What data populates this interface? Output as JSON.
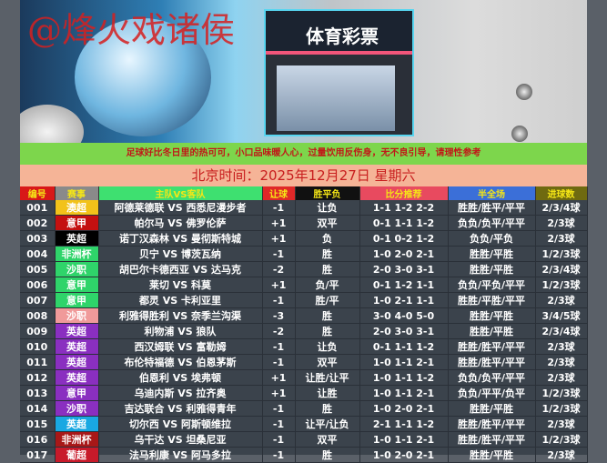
{
  "banner": {
    "watermark": "@烽火戏诸侯",
    "store_sign": "体育彩票"
  },
  "slogan": "足球好比冬日里的热可可，小口品味暖人心，过量饮用反伤身，无不良引导，请理性参考",
  "date_line": "北京时间：2025年12月27日  星期六",
  "headers": [
    {
      "label": "编号",
      "bg": "#d81818"
    },
    {
      "label": "赛事",
      "bg": "#8a8a8a"
    },
    {
      "label": "主队VS客队",
      "bg": "#3ee070"
    },
    {
      "label": "让球",
      "bg": "#e02828"
    },
    {
      "label": "胜平负",
      "bg": "#111111"
    },
    {
      "label": "比分推荐",
      "bg": "#e84a5f"
    },
    {
      "label": "半全场",
      "bg": "#3b6fd8"
    },
    {
      "label": "进球数",
      "bg": "#6f6a10"
    }
  ],
  "rows": [
    {
      "no": "001",
      "league": "澳超",
      "league_color": "#f2c21a",
      "match": "阿德莱德联 VS 西悉尼漫步者",
      "handicap": "-1",
      "result": "让负",
      "scores": "1-1 1-2 2-2",
      "half_full": "胜胜/胜平/平平",
      "goals": "2/3/4球"
    },
    {
      "no": "002",
      "league": "意甲",
      "league_color": "#c41010",
      "match": "帕尔马 VS 佛罗伦萨",
      "handicap": "+1",
      "result": "双平",
      "scores": "0-1 1-1 1-2",
      "half_full": "负负/负平/平平",
      "goals": "2/3球"
    },
    {
      "no": "003",
      "league": "英超",
      "league_color": "#000000",
      "match": "诺丁汉森林 VS 曼彻斯特城",
      "handicap": "+1",
      "result": "负",
      "scores": "0-1 0-2 1-2",
      "half_full": "负负/平负",
      "goals": "2/3球"
    },
    {
      "no": "004",
      "league": "非洲杯",
      "league_color": "#2fd46a",
      "match": "贝宁 VS 博茨瓦纳",
      "handicap": "-1",
      "result": "胜",
      "scores": "1-0 2-0 2-1",
      "half_full": "胜胜/平胜",
      "goals": "1/2/3球"
    },
    {
      "no": "005",
      "league": "沙职",
      "league_color": "#2fd46a",
      "match": "胡巴尔卡德西亚 VS 达马克",
      "handicap": "-2",
      "result": "胜",
      "scores": "2-0 3-0 3-1",
      "half_full": "胜胜/平胜",
      "goals": "2/3/4球"
    },
    {
      "no": "006",
      "league": "意甲",
      "league_color": "#2fd46a",
      "match": "莱切 VS 科莫",
      "handicap": "+1",
      "result": "负/平",
      "scores": "0-1 1-2 1-1",
      "half_full": "负负/平负/平平",
      "goals": "1/2/3球"
    },
    {
      "no": "007",
      "league": "意甲",
      "league_color": "#2fd46a",
      "match": "都灵 VS 卡利亚里",
      "handicap": "-1",
      "result": "胜/平",
      "scores": "1-0 2-1 1-1",
      "half_full": "胜胜/平胜/平平",
      "goals": "2/3球"
    },
    {
      "no": "008",
      "league": "沙职",
      "league_color": "#f09a9a",
      "match": "利雅得胜利 VS 奈季兰沟渠",
      "handicap": "-3",
      "result": "胜",
      "scores": "3-0 4-0 5-0",
      "half_full": "胜胜/平胜",
      "goals": "3/4/5球"
    },
    {
      "no": "009",
      "league": "英超",
      "league_color": "#8a2fc0",
      "match": "利物浦 VS 狼队",
      "handicap": "-2",
      "result": "胜",
      "scores": "2-0 3-0 3-1",
      "half_full": "胜胜/平胜",
      "goals": "2/3/4球"
    },
    {
      "no": "010",
      "league": "英超",
      "league_color": "#8a2fc0",
      "match": "西汉姆联 VS 富勒姆",
      "handicap": "-1",
      "result": "让负",
      "scores": "0-1 1-1 1-2",
      "half_full": "胜胜/胜平/平平",
      "goals": "2/3球"
    },
    {
      "no": "011",
      "league": "英超",
      "league_color": "#8a2fc0",
      "match": "布伦特福德 VS 伯恩茅斯",
      "handicap": "-1",
      "result": "双平",
      "scores": "1-0 1-1 2-1",
      "half_full": "胜胜/胜平/平平",
      "goals": "2/3球"
    },
    {
      "no": "012",
      "league": "英超",
      "league_color": "#8a2fc0",
      "match": "伯恩利 VS 埃弗顿",
      "handicap": "+1",
      "result": "让胜/让平",
      "scores": "1-0 1-1 1-2",
      "half_full": "负负/负平/平平",
      "goals": "2/3球"
    },
    {
      "no": "013",
      "league": "意甲",
      "league_color": "#8a2fc0",
      "match": "乌迪内斯 VS 拉齐奥",
      "handicap": "+1",
      "result": "让胜",
      "scores": "1-0 1-1 2-1",
      "half_full": "负负/平平/负平",
      "goals": "1/2/3球"
    },
    {
      "no": "014",
      "league": "沙职",
      "league_color": "#8a2fc0",
      "match": "吉达联合 VS 利雅得青年",
      "handicap": "-1",
      "result": "胜",
      "scores": "1-0 2-0 2-1",
      "half_full": "胜胜/平胜",
      "goals": "1/2/3球"
    },
    {
      "no": "015",
      "league": "英超",
      "league_color": "#19a8e2",
      "match": "切尔西 VS 阿斯顿维拉",
      "handicap": "-1",
      "result": "让平/让负",
      "scores": "2-1 1-1 1-2",
      "half_full": "胜胜/胜平/平平",
      "goals": "2/3球"
    },
    {
      "no": "016",
      "league": "非洲杯",
      "league_color": "#a81818",
      "match": "乌干达 VS 坦桑尼亚",
      "handicap": "-1",
      "result": "双平",
      "scores": "1-0 1-1 2-1",
      "half_full": "胜胜/胜平/平平",
      "goals": "1/2/3球"
    },
    {
      "no": "017",
      "league": "葡超",
      "league_color": "#c81a2a",
      "match": "法马利康 VS 阿马多拉",
      "handicap": "-1",
      "result": "胜",
      "scores": "1-0 2-0 2-1",
      "half_full": "胜胜/平胜",
      "goals": "2/3球"
    }
  ]
}
